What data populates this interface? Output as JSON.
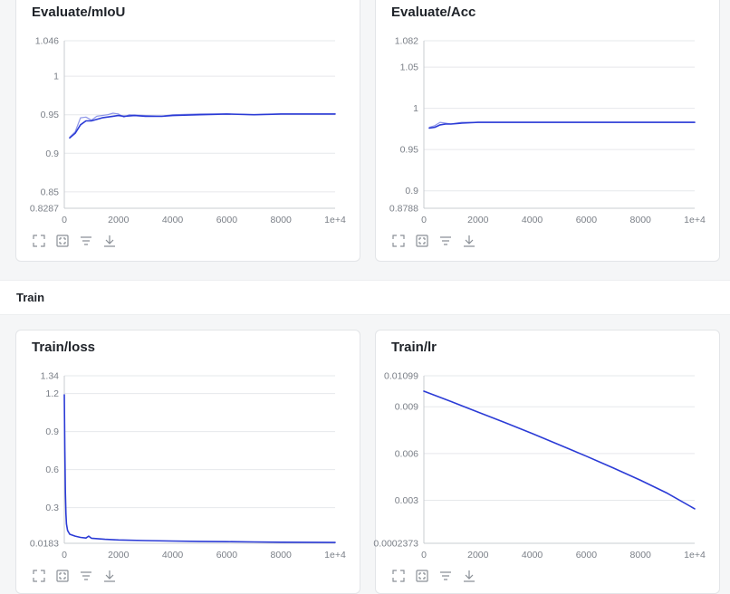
{
  "section": {
    "title": "Train"
  },
  "colors": {
    "series": "#2b3bd6",
    "series_light": "#8e96e8",
    "grid": "#e6e8eb",
    "axis": "#c9ccd1"
  },
  "icons": [
    "fullscreen-icon",
    "fit-view-icon",
    "legend-filter-icon",
    "download-icon"
  ],
  "chart_data": [
    {
      "id": "mIoU",
      "type": "line",
      "title": "Evaluate/mIoU",
      "xlim": [
        0,
        10000
      ],
      "ylim": [
        0.8287,
        1.046
      ],
      "xticks": [
        0,
        2000,
        4000,
        6000,
        8000,
        10000
      ],
      "xtick_labels": [
        "0",
        "2000",
        "4000",
        "6000",
        "8000",
        "1e+4"
      ],
      "yticks": [
        0.8287,
        0.85,
        0.9,
        0.95,
        1,
        1.046
      ],
      "ytick_labels": [
        "0.8287",
        "0.85",
        "0.9",
        "0.95",
        "1",
        "1.046"
      ],
      "series": [
        {
          "style": "raw",
          "values": [
            [
              200,
              0.921
            ],
            [
              400,
              0.928
            ],
            [
              600,
              0.946
            ],
            [
              800,
              0.947
            ],
            [
              1000,
              0.943
            ],
            [
              1200,
              0.948
            ],
            [
              1600,
              0.95
            ],
            [
              1800,
              0.952
            ],
            [
              2000,
              0.951
            ],
            [
              2200,
              0.947
            ],
            [
              2400,
              0.95
            ],
            [
              3000,
              0.949
            ],
            [
              3600,
              0.948
            ],
            [
              4000,
              0.95
            ],
            [
              5000,
              0.951
            ],
            [
              6000,
              0.951
            ],
            [
              7000,
              0.95
            ],
            [
              8000,
              0.951
            ],
            [
              9000,
              0.951
            ],
            [
              10000,
              0.951
            ]
          ]
        },
        {
          "style": "smoothed",
          "values": [
            [
              200,
              0.92
            ],
            [
              400,
              0.926
            ],
            [
              600,
              0.937
            ],
            [
              800,
              0.942
            ],
            [
              1000,
              0.942
            ],
            [
              1400,
              0.946
            ],
            [
              1800,
              0.948
            ],
            [
              2000,
              0.949
            ],
            [
              2200,
              0.948
            ],
            [
              2600,
              0.949
            ],
            [
              3000,
              0.948
            ],
            [
              3600,
              0.948
            ],
            [
              4000,
              0.949
            ],
            [
              5000,
              0.95
            ],
            [
              6000,
              0.951
            ],
            [
              7000,
              0.95
            ],
            [
              8000,
              0.951
            ],
            [
              9000,
              0.951
            ],
            [
              10000,
              0.951
            ]
          ]
        }
      ]
    },
    {
      "id": "acc",
      "type": "line",
      "title": "Evaluate/Acc",
      "xlim": [
        0,
        10000
      ],
      "ylim": [
        0.8788,
        1.082
      ],
      "xticks": [
        0,
        2000,
        4000,
        6000,
        8000,
        10000
      ],
      "xtick_labels": [
        "0",
        "2000",
        "4000",
        "6000",
        "8000",
        "1e+4"
      ],
      "yticks": [
        0.8788,
        0.9,
        0.95,
        1,
        1.05,
        1.082
      ],
      "ytick_labels": [
        "0.8788",
        "0.9",
        "0.95",
        "1",
        "1.05",
        "1.082"
      ],
      "series": [
        {
          "style": "raw",
          "values": [
            [
              200,
              0.977
            ],
            [
              400,
              0.979
            ],
            [
              600,
              0.983
            ],
            [
              800,
              0.982
            ],
            [
              1000,
              0.981
            ],
            [
              1400,
              0.983
            ],
            [
              2000,
              0.983
            ],
            [
              3000,
              0.983
            ],
            [
              4000,
              0.983
            ],
            [
              6000,
              0.983
            ],
            [
              8000,
              0.983
            ],
            [
              10000,
              0.983
            ]
          ]
        },
        {
          "style": "smoothed",
          "values": [
            [
              200,
              0.976
            ],
            [
              400,
              0.977
            ],
            [
              600,
              0.98
            ],
            [
              800,
              0.981
            ],
            [
              1000,
              0.981
            ],
            [
              1400,
              0.982
            ],
            [
              2000,
              0.983
            ],
            [
              3000,
              0.983
            ],
            [
              4000,
              0.983
            ],
            [
              6000,
              0.983
            ],
            [
              8000,
              0.983
            ],
            [
              10000,
              0.983
            ]
          ]
        }
      ]
    },
    {
      "id": "loss",
      "type": "line",
      "title": "Train/loss",
      "xlim": [
        0,
        10000
      ],
      "ylim": [
        0.0183,
        1.34
      ],
      "xticks": [
        0,
        2000,
        4000,
        6000,
        8000,
        10000
      ],
      "xtick_labels": [
        "0",
        "2000",
        "4000",
        "6000",
        "8000",
        "1e+4"
      ],
      "yticks": [
        0.0183,
        0.3,
        0.6,
        0.9,
        1.2,
        1.34
      ],
      "ytick_labels": [
        "0.0183",
        "0.3",
        "0.6",
        "0.9",
        "1.2",
        "1.34"
      ],
      "series": [
        {
          "style": "smoothed",
          "values": [
            [
              0,
              1.19
            ],
            [
              20,
              0.75
            ],
            [
              40,
              0.42
            ],
            [
              60,
              0.25
            ],
            [
              80,
              0.17
            ],
            [
              120,
              0.12
            ],
            [
              200,
              0.09
            ],
            [
              400,
              0.075
            ],
            [
              600,
              0.065
            ],
            [
              800,
              0.06
            ],
            [
              900,
              0.075
            ],
            [
              1000,
              0.058
            ],
            [
              1500,
              0.05
            ],
            [
              2000,
              0.045
            ],
            [
              3000,
              0.04
            ],
            [
              4000,
              0.036
            ],
            [
              5000,
              0.033
            ],
            [
              6000,
              0.031
            ],
            [
              7000,
              0.029
            ],
            [
              8000,
              0.027
            ],
            [
              9000,
              0.026
            ],
            [
              10000,
              0.025
            ]
          ]
        }
      ]
    },
    {
      "id": "lr",
      "type": "line",
      "title": "Train/lr",
      "xlim": [
        0,
        10000
      ],
      "ylim": [
        0.0002373,
        0.01099
      ],
      "xticks": [
        0,
        2000,
        4000,
        6000,
        8000,
        10000
      ],
      "xtick_labels": [
        "0",
        "2000",
        "4000",
        "6000",
        "8000",
        "1e+4"
      ],
      "yticks": [
        0.0002373,
        0.003,
        0.006,
        0.009,
        0.01099
      ],
      "ytick_labels": [
        "0.0002373",
        "0.003",
        "0.006",
        "0.009",
        "0.01099"
      ],
      "series": [
        {
          "style": "smoothed",
          "values": [
            [
              0,
              0.01
            ],
            [
              1000,
              0.00934
            ],
            [
              2000,
              0.00866
            ],
            [
              3000,
              0.00798
            ],
            [
              4000,
              0.00728
            ],
            [
              5000,
              0.00656
            ],
            [
              6000,
              0.00583
            ],
            [
              7000,
              0.00507
            ],
            [
              8000,
              0.00428
            ],
            [
              9000,
              0.00344
            ],
            [
              10000,
              0.00245
            ]
          ]
        }
      ]
    }
  ]
}
